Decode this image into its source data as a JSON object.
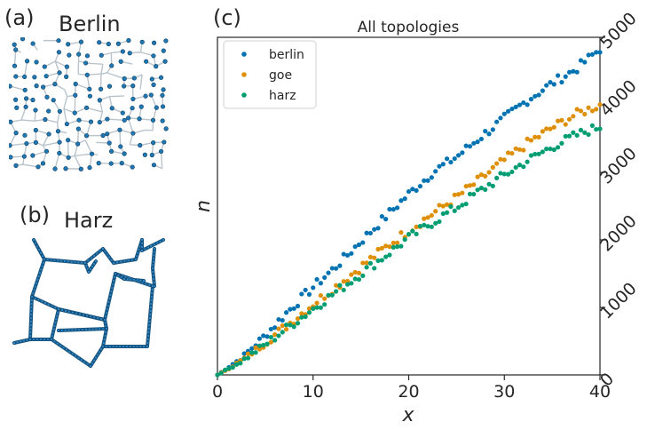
{
  "panels": {
    "a": {
      "label": "(a)",
      "title": "Berlin"
    },
    "b": {
      "label": "(b)",
      "title": "Harz"
    },
    "c": {
      "label": "(c)"
    }
  },
  "colors": {
    "berlin": "#0173b2",
    "goe": "#de8f05",
    "harz": "#029e73",
    "axis": "#262626",
    "edge": "#c8c8c8"
  },
  "chart_data": {
    "type": "scatter",
    "title": "All topologies",
    "xlabel": "x",
    "ylabel": "n",
    "xlim": [
      0,
      40
    ],
    "ylim": [
      0,
      5000
    ],
    "xticks": [
      0,
      10,
      20,
      30,
      40
    ],
    "yticks": [
      0,
      1000,
      2000,
      3000,
      4000,
      5000
    ],
    "y_axis_side": "right",
    "legend": {
      "position": "top-left",
      "entries": [
        "berlin",
        "goe",
        "harz"
      ]
    },
    "series": [
      {
        "name": "berlin",
        "color": "#0173b2",
        "points": [
          [
            0,
            0
          ],
          [
            2.5,
            250
          ],
          [
            5,
            590
          ],
          [
            7.5,
            960
          ],
          [
            10,
            1300
          ],
          [
            12.5,
            1620
          ],
          [
            15,
            1980
          ],
          [
            17.5,
            2330
          ],
          [
            20,
            2680
          ],
          [
            22.5,
            3000
          ],
          [
            25,
            3230
          ],
          [
            27.5,
            3520
          ],
          [
            30,
            3800
          ],
          [
            32.5,
            4080
          ],
          [
            35,
            4320
          ],
          [
            37.5,
            4530
          ],
          [
            40,
            4830
          ]
        ]
      },
      {
        "name": "goe",
        "color": "#de8f05",
        "points": [
          [
            0,
            0
          ],
          [
            2.5,
            210
          ],
          [
            5,
            480
          ],
          [
            7.5,
            760
          ],
          [
            10,
            1050
          ],
          [
            12.5,
            1320
          ],
          [
            15,
            1600
          ],
          [
            17.5,
            1880
          ],
          [
            20,
            2140
          ],
          [
            22.5,
            2390
          ],
          [
            25,
            2630
          ],
          [
            27.5,
            2900
          ],
          [
            30,
            3180
          ],
          [
            32.5,
            3440
          ],
          [
            35,
            3660
          ],
          [
            37.5,
            3860
          ],
          [
            40,
            4000
          ]
        ]
      },
      {
        "name": "harz",
        "color": "#029e73",
        "points": [
          [
            0,
            0
          ],
          [
            2.5,
            200
          ],
          [
            5,
            450
          ],
          [
            7.5,
            720
          ],
          [
            10,
            980
          ],
          [
            12.5,
            1240
          ],
          [
            15,
            1500
          ],
          [
            17.5,
            1760
          ],
          [
            20,
            2030
          ],
          [
            22.5,
            2260
          ],
          [
            25,
            2480
          ],
          [
            27.5,
            2730
          ],
          [
            30,
            2960
          ],
          [
            32.5,
            3180
          ],
          [
            35,
            3380
          ],
          [
            37.5,
            3550
          ],
          [
            40,
            3680
          ]
        ]
      }
    ]
  }
}
